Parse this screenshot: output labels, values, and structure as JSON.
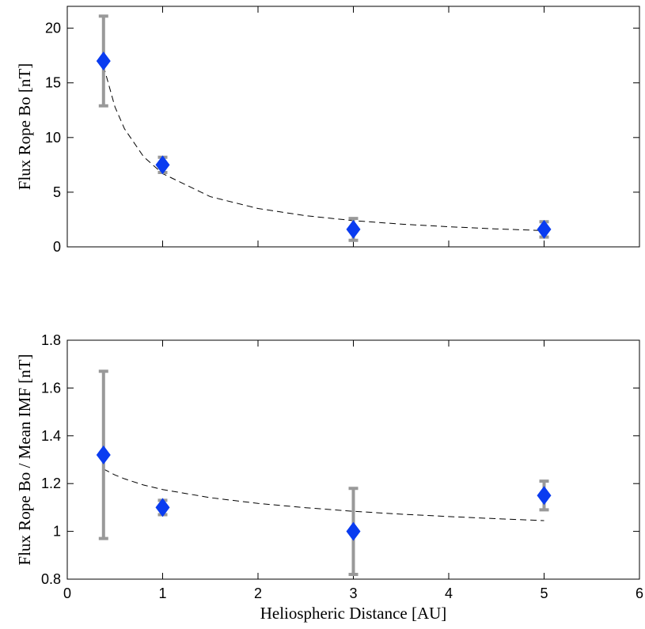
{
  "chart_data": [
    {
      "type": "scatter",
      "ylabel": "Flux Rope Bo [nT]",
      "xlim": [
        0,
        6
      ],
      "xticks": [
        0,
        1,
        2,
        3,
        4,
        5,
        6
      ],
      "xtick_labels": false,
      "ylim": [
        0,
        22
      ],
      "yticks": [
        0,
        5,
        10,
        15,
        20
      ],
      "points": {
        "x": [
          0.38,
          1,
          3,
          5
        ],
        "values": [
          17,
          7.5,
          1.6,
          1.6
        ],
        "errors": [
          4.1,
          0.7,
          1.0,
          0.7
        ],
        "color": "#0a3cf0",
        "error_color": "#999999"
      },
      "fit": {
        "x": [
          0.38,
          0.5,
          0.6,
          0.8,
          1,
          1.5,
          2,
          2.5,
          3,
          3.5,
          4,
          4.5,
          5
        ],
        "values": [
          16.54,
          12.8,
          10.8,
          8.25,
          6.7,
          4.59,
          3.51,
          2.85,
          2.4,
          2.08,
          1.84,
          1.64,
          1.49
        ],
        "color": "#000000",
        "dashed": true
      }
    },
    {
      "type": "scatter",
      "ylabel": "Flux Rope Bo / Mean IMF [nT]",
      "xlabel": "Heliospheric Distance [AU]",
      "xlim": [
        0,
        6
      ],
      "xticks": [
        0,
        1,
        2,
        3,
        4,
        5,
        6
      ],
      "xtick_labels": true,
      "ylim": [
        0.8,
        1.8
      ],
      "yticks": [
        0.8,
        1,
        1.2,
        1.4,
        1.6,
        1.8
      ],
      "points": {
        "x": [
          0.38,
          1,
          3,
          5
        ],
        "values": [
          1.32,
          1.1,
          1.0,
          1.15
        ],
        "errors": [
          0.35,
          0.03,
          0.18,
          0.06
        ],
        "color": "#0a3cf0",
        "error_color": "#999999"
      },
      "fit": {
        "x": [
          0.38,
          0.5,
          0.6,
          0.8,
          1,
          1.5,
          2,
          2.5,
          3,
          3.5,
          4,
          4.5,
          5
        ],
        "values": [
          1.261,
          1.236,
          1.22,
          1.194,
          1.175,
          1.141,
          1.117,
          1.099,
          1.084,
          1.072,
          1.062,
          1.053,
          1.045
        ],
        "color": "#000000",
        "dashed": true
      }
    }
  ]
}
